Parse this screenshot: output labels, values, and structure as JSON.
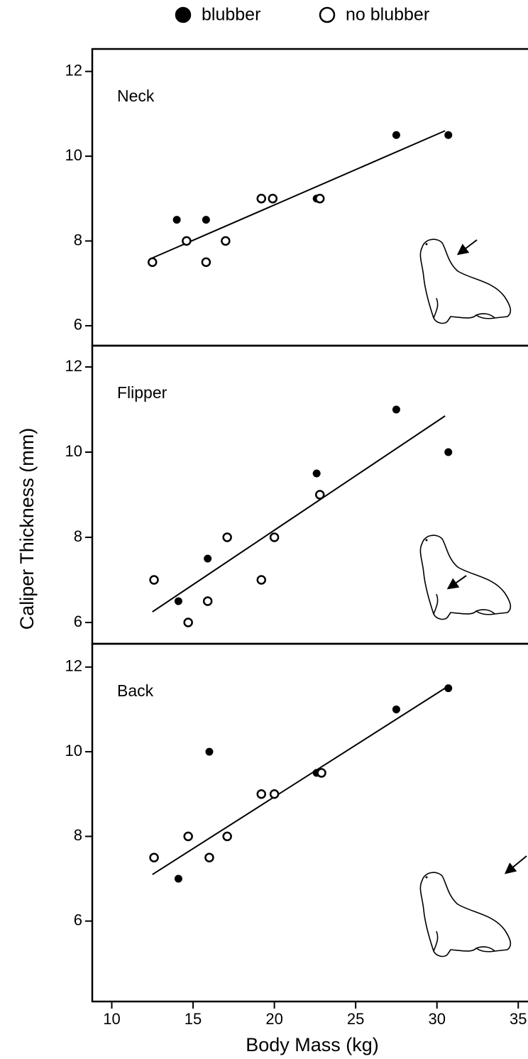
{
  "chart_data": {
    "type": "scatter",
    "xlabel": "Body Mass (kg)",
    "ylabel": "Caliper Thickness (mm)",
    "xlim": [
      8.8,
      35.6
    ],
    "xticks": [
      10,
      15,
      20,
      25,
      30,
      35
    ],
    "series": [
      {
        "name": "blubber",
        "color": "#000000",
        "marker": "filled"
      },
      {
        "name": "no blubber",
        "color": "#000000",
        "marker": "open"
      }
    ],
    "panels": [
      {
        "title": "Neck",
        "ylim": [
          5.53,
          12.53
        ],
        "yticks": [
          6,
          8,
          10,
          12
        ],
        "points": [
          {
            "x": [
              14.0,
              15.8,
              22.6,
              27.5,
              30.7
            ],
            "values": [
              8.5,
              8.5,
              9.0,
              10.5,
              10.5
            ]
          },
          {
            "x": [
              12.5,
              14.6,
              15.8,
              17.0,
              19.2,
              19.9,
              22.8
            ],
            "values": [
              7.5,
              8.0,
              7.5,
              8.0,
              9.0,
              9.0,
              9.0
            ]
          }
        ],
        "fit": {
          "x": [
            12.5,
            30.5
          ],
          "values": [
            7.6,
            10.6
          ]
        }
      },
      {
        "title": "Flipper",
        "ylim": [
          5.5,
          12.5
        ],
        "yticks": [
          6,
          8,
          10,
          12
        ],
        "points": [
          {
            "x": [
              14.1,
              15.9,
              22.6,
              27.5,
              30.7
            ],
            "values": [
              6.5,
              7.5,
              9.5,
              11.0,
              10.0
            ]
          },
          {
            "x": [
              12.6,
              14.7,
              15.9,
              17.1,
              19.2,
              20.0,
              22.8
            ],
            "values": [
              7.0,
              6.0,
              6.5,
              8.0,
              7.0,
              8.0,
              9.0
            ]
          }
        ],
        "fit": {
          "x": [
            12.5,
            30.5
          ],
          "values": [
            6.25,
            10.85
          ]
        }
      },
      {
        "title": "Back",
        "ylim": [
          4.1,
          12.55
        ],
        "yticks": [
          6,
          8,
          10,
          12
        ],
        "points": [
          {
            "x": [
              14.1,
              16.0,
              22.6,
              27.5,
              30.7
            ],
            "values": [
              7.0,
              10.0,
              9.5,
              11.0,
              11.5
            ]
          },
          {
            "x": [
              12.6,
              14.7,
              16.0,
              17.1,
              19.2,
              20.0,
              22.9
            ],
            "values": [
              7.5,
              8.0,
              7.5,
              8.0,
              9.0,
              9.0,
              9.5
            ]
          }
        ],
        "fit": {
          "x": [
            12.5,
            30.7
          ],
          "values": [
            7.1,
            11.55
          ]
        }
      }
    ]
  }
}
